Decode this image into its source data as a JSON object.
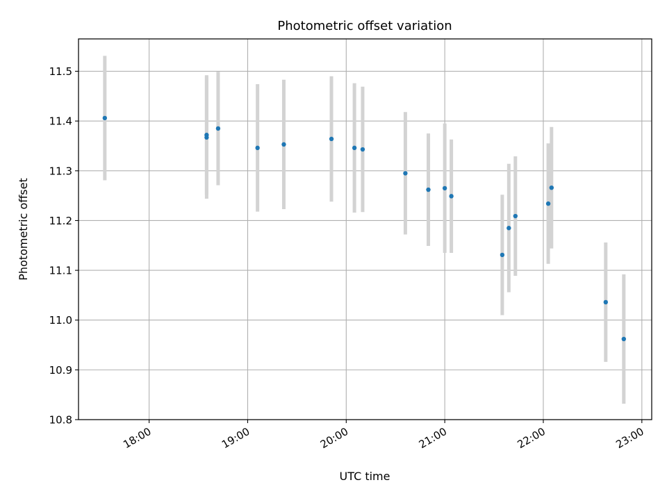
{
  "chart_data": {
    "type": "scatter",
    "title": "Photometric offset variation",
    "xlabel": "UTC time",
    "ylabel": "Photometric offset",
    "xlim": [
      "17:17",
      "23:06"
    ],
    "ylim": [
      10.8,
      11.565
    ],
    "x_ticks": [
      "18:00",
      "19:00",
      "20:00",
      "21:00",
      "22:00",
      "23:00"
    ],
    "y_ticks": [
      "10.8",
      "10.9",
      "11.0",
      "11.1",
      "11.2",
      "11.3",
      "11.4",
      "11.5"
    ],
    "grid": true,
    "marker_color": "#1f77b4",
    "errorbar_color": "#d3d3d3",
    "points": [
      {
        "x": "17:33",
        "y": 11.406,
        "yerr": 0.125
      },
      {
        "x": "18:35",
        "y": 11.367,
        "yerr": 0.123
      },
      {
        "x": "18:35",
        "y": 11.372,
        "yerr": 0.12
      },
      {
        "x": "18:42",
        "y": 11.385,
        "yerr": 0.114
      },
      {
        "x": "19:06",
        "y": 11.346,
        "yerr": 0.128
      },
      {
        "x": "19:22",
        "y": 11.353,
        "yerr": 0.13
      },
      {
        "x": "19:51",
        "y": 11.364,
        "yerr": 0.126
      },
      {
        "x": "20:05",
        "y": 11.346,
        "yerr": 0.13
      },
      {
        "x": "20:10",
        "y": 11.343,
        "yerr": 0.126
      },
      {
        "x": "20:36",
        "y": 11.295,
        "yerr": 0.123
      },
      {
        "x": "20:50",
        "y": 11.262,
        "yerr": 0.113
      },
      {
        "x": "21:00",
        "y": 11.265,
        "yerr": 0.13
      },
      {
        "x": "21:04",
        "y": 11.249,
        "yerr": 0.114
      },
      {
        "x": "21:35",
        "y": 11.131,
        "yerr": 0.121
      },
      {
        "x": "21:39",
        "y": 11.185,
        "yerr": 0.129
      },
      {
        "x": "21:43",
        "y": 11.209,
        "yerr": 0.12
      },
      {
        "x": "22:03",
        "y": 11.234,
        "yerr": 0.121
      },
      {
        "x": "22:05",
        "y": 11.266,
        "yerr": 0.122
      },
      {
        "x": "22:38",
        "y": 11.036,
        "yerr": 0.12
      },
      {
        "x": "22:49",
        "y": 10.962,
        "yerr": 0.13
      }
    ]
  }
}
